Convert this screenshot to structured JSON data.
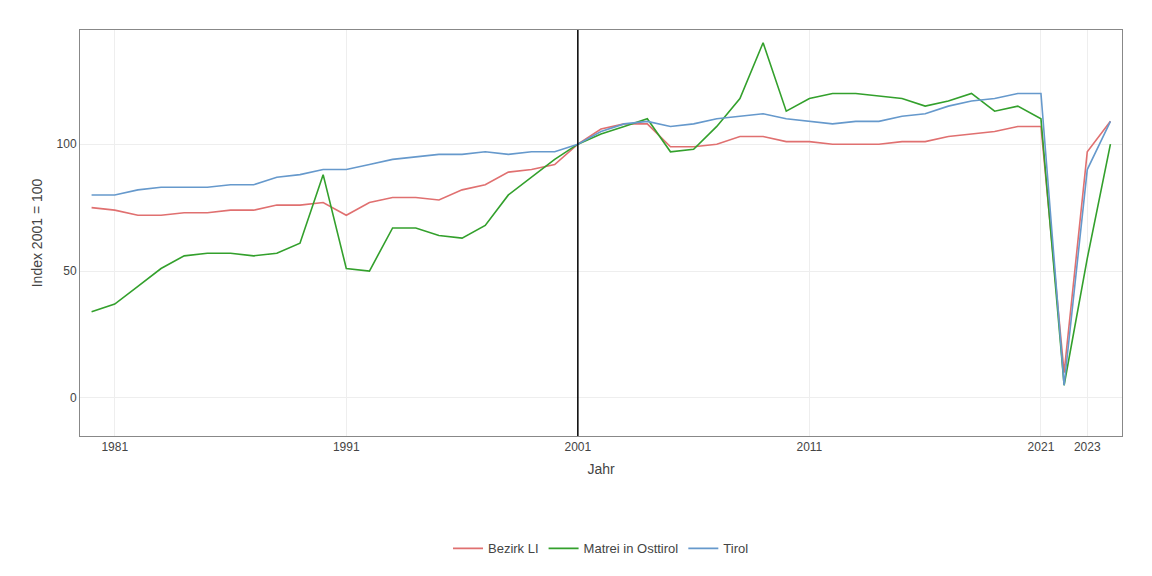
{
  "chart_data": {
    "type": "line",
    "xlabel": "Jahr",
    "ylabel": "Index 2001 = 100",
    "x": [
      1980,
      1981,
      1982,
      1983,
      1984,
      1985,
      1986,
      1987,
      1988,
      1989,
      1990,
      1991,
      1992,
      1993,
      1994,
      1995,
      1996,
      1997,
      1998,
      1999,
      2000,
      2001,
      2002,
      2003,
      2004,
      2005,
      2006,
      2007,
      2008,
      2009,
      2010,
      2011,
      2012,
      2013,
      2014,
      2015,
      2016,
      2017,
      2018,
      2019,
      2020,
      2021,
      2022,
      2023,
      2024
    ],
    "series": [
      {
        "name": "Bezirk LI",
        "color": "#E07070",
        "values": [
          75,
          74,
          72,
          72,
          73,
          73,
          74,
          74,
          76,
          76,
          77,
          72,
          77,
          79,
          79,
          78,
          82,
          84,
          89,
          90,
          92,
          100,
          106,
          108,
          108,
          99,
          99,
          100,
          103,
          103,
          101,
          101,
          100,
          100,
          100,
          101,
          101,
          103,
          104,
          105,
          107,
          107,
          10,
          97,
          109
        ]
      },
      {
        "name": "Matrei in Osttirol",
        "color": "#33a02c",
        "values": [
          34,
          37,
          44,
          51,
          56,
          57,
          57,
          56,
          57,
          61,
          88,
          51,
          50,
          67,
          67,
          64,
          63,
          68,
          80,
          87,
          94,
          100,
          104,
          107,
          110,
          97,
          98,
          107,
          118,
          140,
          113,
          118,
          120,
          120,
          119,
          118,
          115,
          117,
          120,
          113,
          115,
          110,
          5,
          55,
          100
        ]
      },
      {
        "name": "Tirol",
        "color": "#6699cc",
        "values": [
          80,
          80,
          82,
          83,
          83,
          83,
          84,
          84,
          87,
          88,
          90,
          90,
          92,
          94,
          95,
          96,
          96,
          97,
          96,
          97,
          97,
          100,
          105,
          108,
          109,
          107,
          108,
          110,
          111,
          112,
          110,
          109,
          108,
          109,
          109,
          111,
          112,
          115,
          117,
          118,
          120,
          120,
          5,
          90,
          109
        ]
      }
    ],
    "vline_x": 2001,
    "xlim": [
      1979.5,
      2024.5
    ],
    "xticks": [
      1981,
      1991,
      2001,
      2011,
      2021,
      2023
    ],
    "ylim": [
      -15,
      145
    ],
    "yticks": [
      0,
      50,
      100
    ],
    "grid": true,
    "legend": "bottom"
  }
}
